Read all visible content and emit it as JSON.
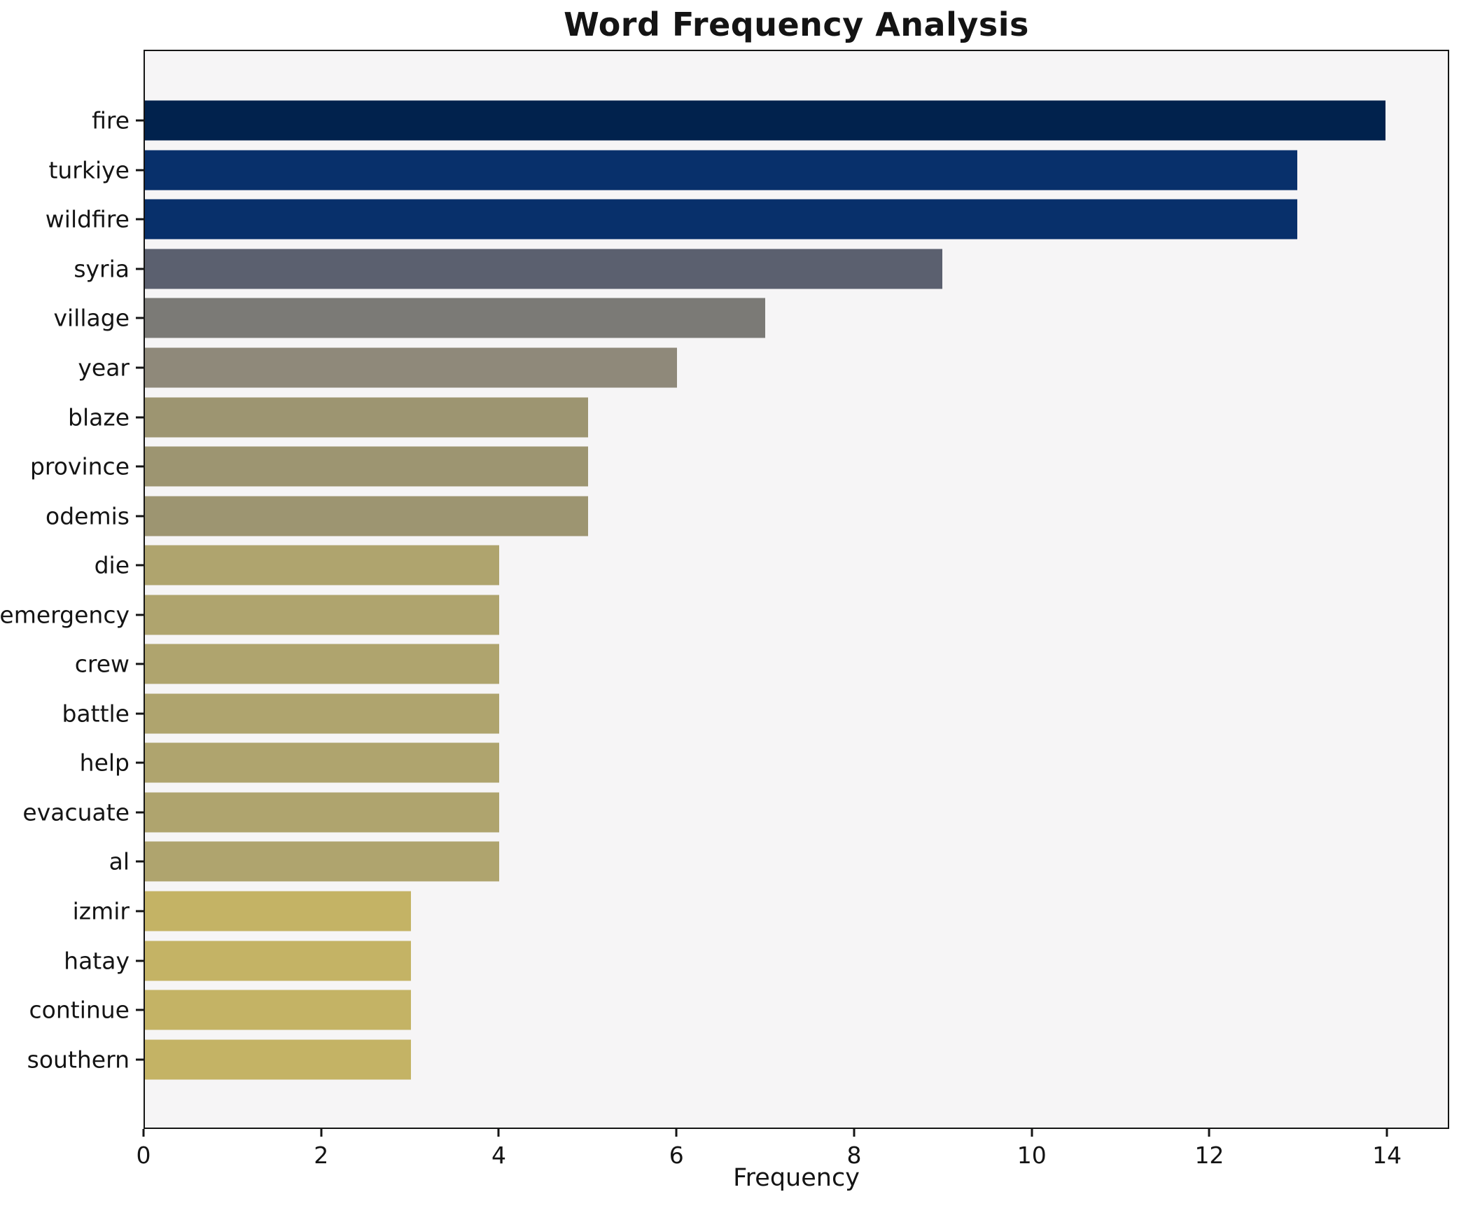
{
  "title": "Word Frequency Analysis",
  "chart_data": {
    "type": "bar",
    "orientation": "horizontal",
    "title": "Word Frequency Analysis",
    "xlabel": "Frequency",
    "ylabel": "",
    "xlim": [
      0,
      14.7
    ],
    "x_ticks": [
      0,
      2,
      4,
      6,
      8,
      10,
      12,
      14
    ],
    "grid": false,
    "legend": "none",
    "categories": [
      "fire",
      "turkiye",
      "wildfire",
      "syria",
      "village",
      "year",
      "blaze",
      "province",
      "odemis",
      "die",
      "emergency",
      "crew",
      "battle",
      "help",
      "evacuate",
      "al",
      "izmir",
      "hatay",
      "continue",
      "southern"
    ],
    "values": [
      14,
      13,
      13,
      9,
      7,
      6,
      5,
      5,
      5,
      4,
      4,
      4,
      4,
      4,
      4,
      4,
      3,
      3,
      3,
      3
    ],
    "bar_colors": [
      "#01224d",
      "#08306b",
      "#08306b",
      "#5b606f",
      "#7b7a76",
      "#8f897a",
      "#9d9571",
      "#9d9571",
      "#9d9571",
      "#afa46e",
      "#afa46e",
      "#afa46e",
      "#afa46e",
      "#afa46e",
      "#afa46e",
      "#afa46e",
      "#c4b365",
      "#c4b365",
      "#c4b365",
      "#c4b365"
    ],
    "colors": {
      "figure_bg": "#ffffff",
      "plot_bg": "#f6f5f6",
      "spine": "#151515",
      "text": "#141414"
    }
  }
}
